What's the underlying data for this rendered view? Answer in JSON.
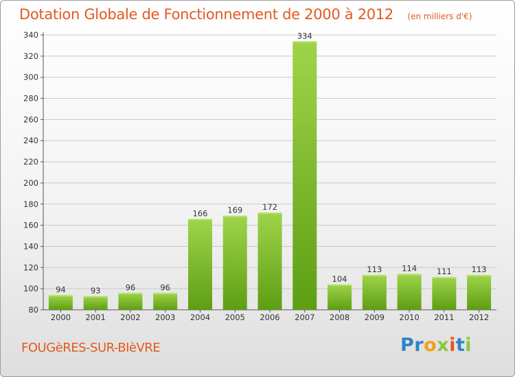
{
  "header": {
    "title": "Dotation Globale de Fonctionnement de 2000 à 2012",
    "unit": "(en milliers d'€)"
  },
  "footer": {
    "commune": "FOUGèRES-SUR-BIèVRE",
    "logo_letters": [
      "P",
      "r",
      "o",
      "x",
      "i",
      "t",
      "i"
    ],
    "logo_colors": [
      "#2f83c6",
      "#2f83c6",
      "#f0a21a",
      "#8cc63f",
      "#e3591f",
      "#2f83c6",
      "#8cc63f"
    ]
  },
  "colors": {
    "bar_top": "#9fd44a",
    "bar_bottom": "#5e9e14",
    "grid": "#c8c8c8",
    "text": "#333333",
    "accent": "#e3591f"
  },
  "chart_data": {
    "type": "bar",
    "categories": [
      "2000",
      "2001",
      "2002",
      "2003",
      "2004",
      "2005",
      "2006",
      "2007",
      "2008",
      "2009",
      "2010",
      "2011",
      "2012"
    ],
    "values": [
      94,
      93,
      96,
      96,
      166,
      169,
      172,
      334,
      104,
      113,
      114,
      111,
      113
    ],
    "ylim": [
      80,
      340
    ],
    "yticks": [
      80,
      100,
      120,
      140,
      160,
      180,
      200,
      220,
      240,
      260,
      280,
      300,
      320,
      340
    ],
    "grid": "horizontal",
    "data_labels": true
  }
}
